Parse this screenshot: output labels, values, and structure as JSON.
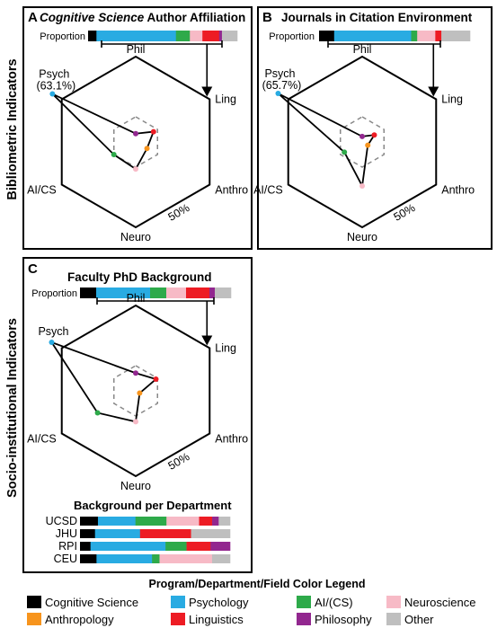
{
  "colors": {
    "cogsci": "#000000",
    "psych": "#29abe2",
    "ai": "#2eaa4a",
    "neuro": "#f7bac6",
    "anthro": "#f7941d",
    "ling": "#ed1c24",
    "phil": "#92278f",
    "other": "#bfbfbf"
  },
  "side_labels": {
    "top": "Bibliometric Indicators",
    "bottom": "Socio-institutional Indicators"
  },
  "common": {
    "proportion_label": "Proportion",
    "fifty_label": "50%"
  },
  "chart_data": [
    {
      "type": "radar",
      "panel": "A",
      "title_italic": "Cognitive Science",
      "title_rest": " Author Affiliation",
      "axes": [
        "Phil",
        "Ling",
        "Anthro",
        "Neuro",
        "AI/CS",
        "Psych"
      ],
      "values": [
        3.0,
        9.5,
        5.5,
        13.0,
        12.0,
        63.1
      ],
      "max": 100,
      "psych_annotation": "(63.1%)",
      "proportion": [
        {
          "cat": "cogsci",
          "value": 6
        },
        {
          "cat": "psych",
          "value": 57
        },
        {
          "cat": "ai",
          "value": 10
        },
        {
          "cat": "neuro",
          "value": 9
        },
        {
          "cat": "ling",
          "value": 12
        },
        {
          "cat": "phil",
          "value": 2
        },
        {
          "cat": "other",
          "value": 11
        }
      ]
    },
    {
      "type": "radar",
      "panel": "B",
      "title_italic": "",
      "title_rest": "Journals in Citation Environment",
      "axes": [
        "Phil",
        "Ling",
        "Anthro",
        "Neuro",
        "AI/CS",
        "Psych"
      ],
      "values": [
        1.5,
        6.0,
        2.0,
        22.0,
        9.5,
        65.7
      ],
      "max": 100,
      "psych_annotation": "(65.7%)",
      "proportion": [
        {
          "cat": "cogsci",
          "value": 10
        },
        {
          "cat": "psych",
          "value": 51
        },
        {
          "cat": "ai",
          "value": 4
        },
        {
          "cat": "neuro",
          "value": 12
        },
        {
          "cat": "ling",
          "value": 4
        },
        {
          "cat": "other",
          "value": 19
        }
      ]
    },
    {
      "type": "radar",
      "panel": "C",
      "title_italic": "",
      "title_rest": "Faculty PhD Background",
      "axes": [
        "Phil",
        "Ling",
        "Anthro",
        "Neuro",
        "AI/CS",
        "Psych"
      ],
      "values": [
        8.0,
        11.0,
        1.0,
        15.0,
        22.0,
        55.0
      ],
      "max": 100,
      "psych_annotation": "",
      "proportion": [
        {
          "cat": "cogsci",
          "value": 9
        },
        {
          "cat": "psych",
          "value": 30
        },
        {
          "cat": "ai",
          "value": 9
        },
        {
          "cat": "neuro",
          "value": 11
        },
        {
          "cat": "ling",
          "value": 13
        },
        {
          "cat": "phil",
          "value": 3
        },
        {
          "cat": "other",
          "value": 9
        }
      ]
    }
  ],
  "department": {
    "title": "Background per Department",
    "rows": [
      {
        "name": "UCSD",
        "segments": [
          {
            "cat": "cogsci",
            "value": 11
          },
          {
            "cat": "psych",
            "value": 23
          },
          {
            "cat": "ai",
            "value": 19
          },
          {
            "cat": "neuro",
            "value": 20
          },
          {
            "cat": "ling",
            "value": 8
          },
          {
            "cat": "phil",
            "value": 4
          },
          {
            "cat": "other",
            "value": 7
          }
        ]
      },
      {
        "name": "JHU",
        "segments": [
          {
            "cat": "cogsci",
            "value": 10
          },
          {
            "cat": "psych",
            "value": 30
          },
          {
            "cat": "ling",
            "value": 34
          },
          {
            "cat": "other",
            "value": 26
          }
        ]
      },
      {
        "name": "RPI",
        "segments": [
          {
            "cat": "cogsci",
            "value": 7
          },
          {
            "cat": "psych",
            "value": 50
          },
          {
            "cat": "ai",
            "value": 14
          },
          {
            "cat": "ling",
            "value": 16
          },
          {
            "cat": "phil",
            "value": 13
          }
        ]
      },
      {
        "name": "CEU",
        "segments": [
          {
            "cat": "cogsci",
            "value": 11
          },
          {
            "cat": "psych",
            "value": 37
          },
          {
            "cat": "ai",
            "value": 5
          },
          {
            "cat": "neuro",
            "value": 35
          },
          {
            "cat": "other",
            "value": 12
          }
        ]
      }
    ]
  },
  "legend": {
    "title": "Program/Department/Field Color Legend",
    "items": [
      {
        "cat": "cogsci",
        "label": "Cognitive Science"
      },
      {
        "cat": "psych",
        "label": "Psychology"
      },
      {
        "cat": "ai",
        "label": "AI/(CS)"
      },
      {
        "cat": "neuro",
        "label": "Neuroscience"
      },
      {
        "cat": "anthro",
        "label": "Anthropology"
      },
      {
        "cat": "ling",
        "label": "Linguistics"
      },
      {
        "cat": "phil",
        "label": "Philosophy"
      },
      {
        "cat": "other",
        "label": "Other"
      }
    ]
  }
}
